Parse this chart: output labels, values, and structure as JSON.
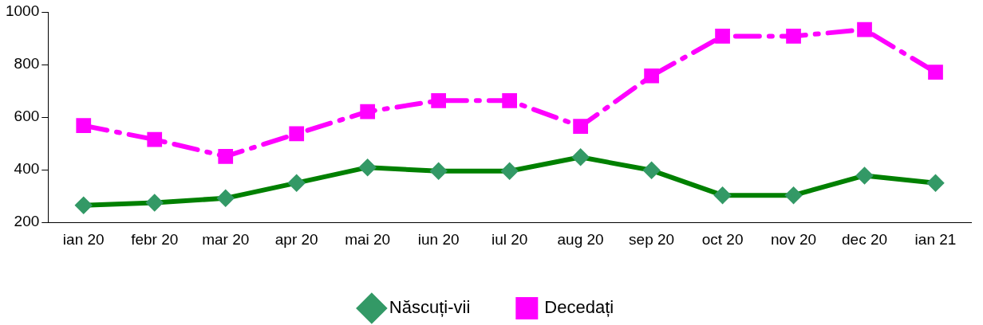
{
  "chart_data": {
    "type": "line",
    "categories": [
      "ian 20",
      "febr 20",
      "mar 20",
      "apr 20",
      "mai 20",
      "iun 20",
      "iul 20",
      "aug 20",
      "sep 20",
      "oct 20",
      "nov 20",
      "dec 20",
      "ian 21"
    ],
    "series": [
      {
        "name": "Născuți-vii",
        "color": "#008000",
        "marker": "diamond",
        "line_style": "solid",
        "values": [
          265,
          275,
          292,
          350,
          409,
          395,
          395,
          448,
          398,
          303,
          303,
          378,
          350
        ]
      },
      {
        "name": "Decedați",
        "color": "#ff00ff",
        "marker": "square",
        "line_style": "dashdot",
        "values": [
          568,
          515,
          451,
          537,
          621,
          663,
          663,
          565,
          757,
          908,
          908,
          933,
          771
        ]
      }
    ],
    "ylim": [
      200,
      1000
    ],
    "yticks": [
      200,
      400,
      600,
      800,
      1000
    ],
    "grid": false,
    "legend": "bottom"
  }
}
